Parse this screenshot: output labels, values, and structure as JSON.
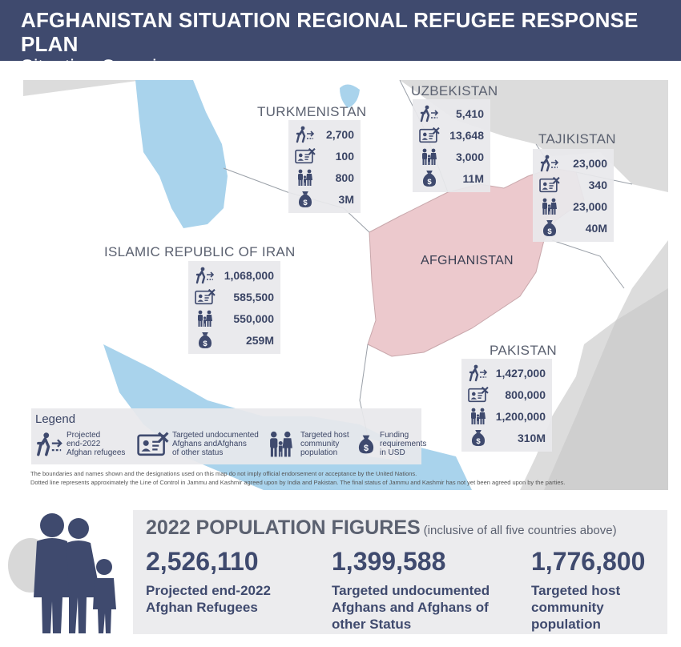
{
  "header": {
    "title": "AFGHANISTAN SITUATION REGIONAL REFUGEE RESPONSE PLAN",
    "subtitle": "Situation Overview"
  },
  "map": {
    "colors": {
      "background": "#dcdcdc",
      "land_other": "#ffffff",
      "afghanistan": "#ecc9cd",
      "water": "#a9d3ec",
      "stat_icon": "#3f4a6e"
    },
    "countries": [
      {
        "name": "TURKMENISTAN",
        "refugees": "2,700",
        "undocumented": "100",
        "host": "800",
        "funding": "3M"
      },
      {
        "name": "UZBEKISTAN",
        "refugees": "5,410",
        "undocumented": "13,648",
        "host": "3,000",
        "funding": "11M"
      },
      {
        "name": "TAJIKISTAN",
        "refugees": "23,000",
        "undocumented": "340",
        "host": "23,000",
        "funding": "40M"
      },
      {
        "name": "ISLAMIC REPUBLIC OF IRAN",
        "refugees": "1,068,000",
        "undocumented": "585,500",
        "host": "550,000",
        "funding": "259M"
      },
      {
        "name": "PAKISTAN",
        "refugees": "1,427,000",
        "undocumented": "800,000",
        "host": "1,200,000",
        "funding": "310M"
      }
    ],
    "afghanistan_label": "AFGHANISTAN",
    "legend": {
      "title": "Legend",
      "items": [
        {
          "icon": "refugee-icon",
          "label_lines": [
            "Projected",
            "end-2022",
            "Afghan refugees"
          ]
        },
        {
          "icon": "undocumented-id-icon",
          "label_lines": [
            "Targeted undocumented",
            "Afghans andAfghans",
            "of other status"
          ]
        },
        {
          "icon": "host-community-icon",
          "label_lines": [
            "Targeted host",
            "community",
            "population"
          ]
        },
        {
          "icon": "money-bag-icon",
          "label_lines": [
            "Funding",
            "requirements",
            "in USD"
          ]
        }
      ]
    },
    "disclaimer_lines": [
      "The boundaries and names shown and the designations used on this map do not imply official endorsement or acceptance by the United Nations.",
      "Dotted line represents approximately the Line of Control in Jammu and Kashmir agreed upon by India and Pakistan. The final status of Jammu and Kashmir has not yet been agreed upon by the parties."
    ]
  },
  "population": {
    "heading": "2022 POPULATION FIGURES",
    "heading_note": "(inclusive of all five countries above)",
    "figures": [
      {
        "value": "2,526,110",
        "label_lines": [
          "Projected end-2022",
          "Afghan Refugees"
        ]
      },
      {
        "value": "1,399,588",
        "label_lines": [
          "Targeted undocumented",
          "Afghans and Afghans of",
          "other Status"
        ]
      },
      {
        "value": "1,776,800",
        "label_lines": [
          "Targeted host",
          "community",
          "population"
        ]
      }
    ]
  }
}
